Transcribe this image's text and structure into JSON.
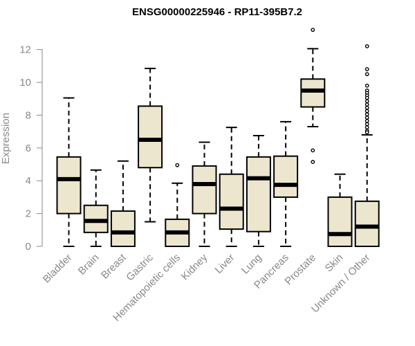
{
  "chart_data": {
    "type": "box",
    "title": "ENSG00000225946 - RP11-395B7.2",
    "xlabel": "",
    "ylabel": "Expression",
    "ylim": [
      0,
      13
    ],
    "yticks": [
      0,
      2,
      4,
      6,
      8,
      10,
      12
    ],
    "grid": false,
    "legend": "none",
    "colors": {
      "box_fill": "#ede6cf",
      "stroke": "#000000",
      "axis": "#888888"
    },
    "categories": [
      "Bladder",
      "Brain",
      "Breast",
      "Gastric",
      "Hematopoietic cells",
      "Kidney",
      "Liver",
      "Lung",
      "Pancreas",
      "Prostate",
      "Skin",
      "Unknown / Other"
    ],
    "boxes": [
      {
        "min": 0,
        "q1": 2.0,
        "median": 4.1,
        "q3": 5.45,
        "max": 9.05,
        "outliers": []
      },
      {
        "min": 0,
        "q1": 0.85,
        "median": 1.55,
        "q3": 2.5,
        "max": 4.65,
        "outliers": []
      },
      {
        "min": 0,
        "q1": 0,
        "median": 0.85,
        "q3": 2.15,
        "max": 5.2,
        "outliers": []
      },
      {
        "min": 1.5,
        "q1": 4.8,
        "median": 6.5,
        "q3": 8.55,
        "max": 10.85,
        "outliers": []
      },
      {
        "min": 0,
        "q1": 0,
        "median": 0.85,
        "q3": 1.65,
        "max": 3.85,
        "outliers": [
          4.95
        ]
      },
      {
        "min": 0,
        "q1": 2.0,
        "median": 3.8,
        "q3": 4.9,
        "max": 6.35,
        "outliers": []
      },
      {
        "min": 0,
        "q1": 1.05,
        "median": 2.3,
        "q3": 4.4,
        "max": 7.25,
        "outliers": []
      },
      {
        "min": 0,
        "q1": 0.9,
        "median": 4.15,
        "q3": 5.45,
        "max": 6.75,
        "outliers": []
      },
      {
        "min": 0,
        "q1": 3.0,
        "median": 3.75,
        "q3": 5.5,
        "max": 7.6,
        "outliers": []
      },
      {
        "min": 7.3,
        "q1": 8.5,
        "median": 9.5,
        "q3": 10.2,
        "max": 12.05,
        "outliers": [
          13.2,
          5.85,
          5.15
        ]
      },
      {
        "min": 0,
        "q1": 0,
        "median": 0.75,
        "q3": 3.0,
        "max": 4.4,
        "outliers": []
      },
      {
        "min": 0,
        "q1": 0,
        "median": 1.2,
        "q3": 2.75,
        "max": 6.8,
        "outliers": [
          12.2,
          10.8,
          10.5,
          9.8,
          9.5,
          9.35,
          9.2,
          9.05,
          8.85,
          8.65,
          8.45,
          8.25,
          8.05,
          7.85,
          7.65,
          7.45,
          7.25,
          7.05,
          6.95
        ]
      }
    ]
  }
}
